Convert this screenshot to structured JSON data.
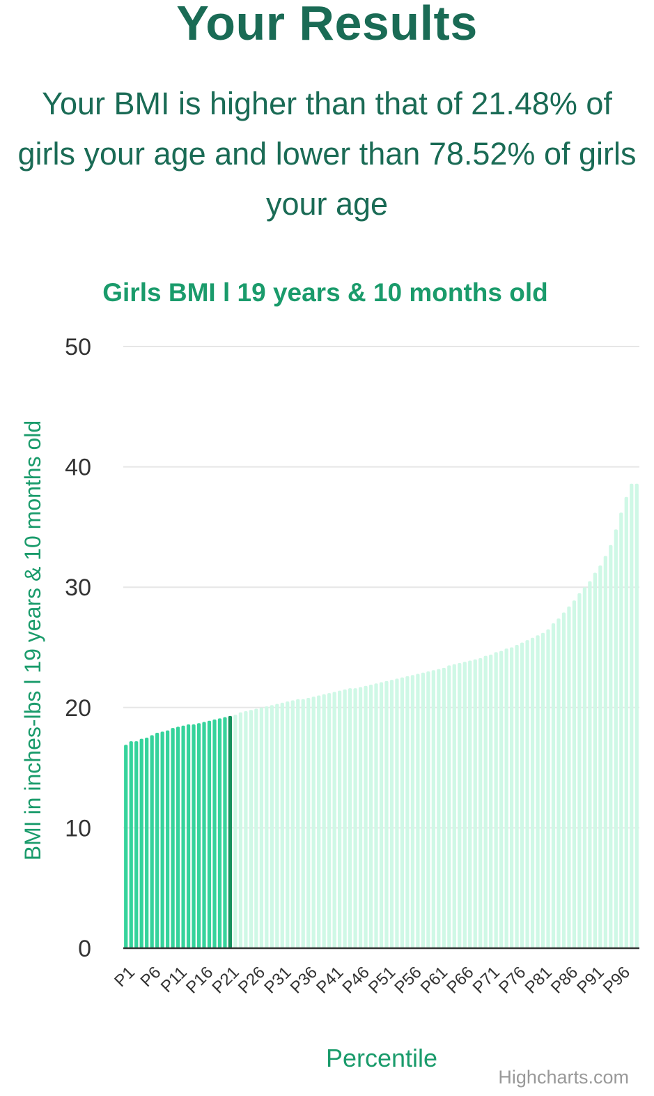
{
  "header": {
    "title": "Your Results",
    "summary": "Your BMI is higher than that of 21.48% of girls your age and lower than 78.52% of girls your age"
  },
  "colors": {
    "title": "#1a6b55",
    "chart_title": "#1a9b6b",
    "axis_title": "#1a9b6b",
    "bar_below": "#35d39b",
    "bar_current": "#16925e",
    "bar_above": "#cff8e6",
    "grid": "#e6e6e6",
    "axis_line": "#333333",
    "tick_text": "#333333",
    "credits": "#999999"
  },
  "credits": "Highcharts.com",
  "chart_data": {
    "type": "bar",
    "title": "Girls BMI l 19 years & 10 months old",
    "xlabel": "Percentile",
    "ylabel": "BMI in inches-lbs l 19 years & 10 months old",
    "ylim": [
      0,
      50
    ],
    "yticks": [
      0,
      10,
      20,
      30,
      40,
      50
    ],
    "grid": true,
    "legend": "none",
    "current_index": 20,
    "categories": [
      "P1",
      "P2",
      "P3",
      "P4",
      "P5",
      "P6",
      "P7",
      "P8",
      "P9",
      "P10",
      "P11",
      "P12",
      "P13",
      "P14",
      "P15",
      "P16",
      "P17",
      "P18",
      "P19",
      "P20",
      "P21",
      "P22",
      "P23",
      "P24",
      "P25",
      "P26",
      "P27",
      "P28",
      "P29",
      "P30",
      "P31",
      "P32",
      "P33",
      "P34",
      "P35",
      "P36",
      "P37",
      "P38",
      "P39",
      "P40",
      "P41",
      "P42",
      "P43",
      "P44",
      "P45",
      "P46",
      "P47",
      "P48",
      "P49",
      "P50",
      "P51",
      "P52",
      "P53",
      "P54",
      "P55",
      "P56",
      "P57",
      "P58",
      "P59",
      "P60",
      "P61",
      "P62",
      "P63",
      "P64",
      "P65",
      "P66",
      "P67",
      "P68",
      "P69",
      "P70",
      "P71",
      "P72",
      "P73",
      "P74",
      "P75",
      "P76",
      "P77",
      "P78",
      "P79",
      "P80",
      "P81",
      "P82",
      "P83",
      "P84",
      "P85",
      "P86",
      "P87",
      "P88",
      "P89",
      "P90",
      "P91",
      "P92",
      "P93",
      "P94",
      "P95",
      "P96",
      "P97",
      "P98",
      "P99"
    ],
    "visible_tick_labels": [
      "P1",
      "P6",
      "P11",
      "P16",
      "P21",
      "P26",
      "P31",
      "P36",
      "P41",
      "P46",
      "P51",
      "P56",
      "P61",
      "P66",
      "P71",
      "P76",
      "P81",
      "P86",
      "P91",
      "P96"
    ],
    "values": [
      16.9,
      17.2,
      17.2,
      17.4,
      17.5,
      17.7,
      17.9,
      18.0,
      18.1,
      18.3,
      18.4,
      18.5,
      18.6,
      18.6,
      18.7,
      18.8,
      18.9,
      19.0,
      19.1,
      19.2,
      19.3,
      19.4,
      19.6,
      19.7,
      19.8,
      19.9,
      20.0,
      20.1,
      20.2,
      20.3,
      20.4,
      20.5,
      20.6,
      20.7,
      20.7,
      20.8,
      20.9,
      21.0,
      21.1,
      21.2,
      21.3,
      21.4,
      21.5,
      21.6,
      21.6,
      21.7,
      21.8,
      21.9,
      22.0,
      22.1,
      22.2,
      22.3,
      22.4,
      22.5,
      22.6,
      22.7,
      22.8,
      22.9,
      23.0,
      23.1,
      23.2,
      23.3,
      23.5,
      23.6,
      23.7,
      23.8,
      23.9,
      24.0,
      24.1,
      24.3,
      24.4,
      24.6,
      24.7,
      24.9,
      25.0,
      25.2,
      25.4,
      25.6,
      25.8,
      26.0,
      26.2,
      26.5,
      27.0,
      27.4,
      27.9,
      28.4,
      28.9,
      29.5,
      30.0,
      30.5,
      31.2,
      31.8,
      32.6,
      33.5,
      34.8,
      36.2,
      37.5,
      38.6,
      38.6
    ]
  }
}
